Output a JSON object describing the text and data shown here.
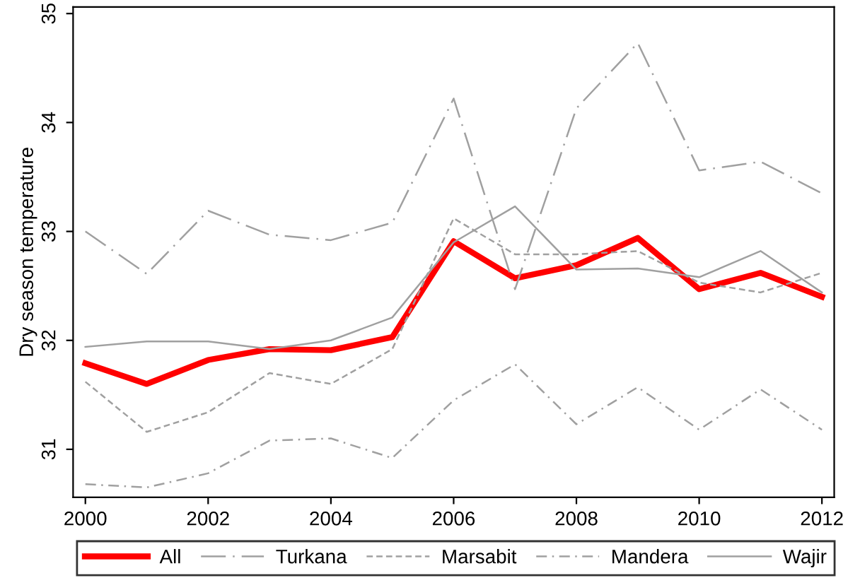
{
  "chart_data": {
    "type": "line",
    "ylabel": "Dry season temperature",
    "x": [
      2000,
      2001,
      2002,
      2003,
      2004,
      2005,
      2006,
      2007,
      2008,
      2009,
      2010,
      2011,
      2012
    ],
    "xlim": [
      1999.8,
      2012.2
    ],
    "xticks": [
      2000,
      2002,
      2004,
      2006,
      2008,
      2010,
      2012
    ],
    "ylim": [
      30.56,
      35.06
    ],
    "yticks": [
      31,
      32,
      33,
      34,
      35
    ],
    "grid": false,
    "legend": "bottom",
    "marker": "none",
    "series": [
      {
        "name": "All",
        "color": "#ff0000",
        "line_style": "solid",
        "values": [
          31.79,
          31.6,
          31.82,
          31.92,
          31.91,
          32.03,
          32.91,
          32.57,
          32.69,
          32.94,
          32.47,
          32.62,
          32.4
        ]
      },
      {
        "name": "Turkana",
        "color": "#a0a0a0",
        "line_style": "longdashdot",
        "values": [
          33.0,
          32.61,
          33.19,
          32.97,
          32.92,
          33.08,
          34.22,
          32.47,
          34.13,
          34.73,
          33.56,
          33.64,
          33.35
        ]
      },
      {
        "name": "Marsabit",
        "color": "#a0a0a0",
        "line_style": "dashed",
        "values": [
          31.62,
          31.16,
          31.34,
          31.7,
          31.6,
          31.92,
          33.12,
          32.79,
          32.79,
          32.82,
          32.53,
          32.44,
          32.62
        ]
      },
      {
        "name": "Mandera",
        "color": "#a0a0a0",
        "line_style": "dashdot",
        "values": [
          30.68,
          30.65,
          30.78,
          31.08,
          31.1,
          30.92,
          31.45,
          31.78,
          31.23,
          31.57,
          31.18,
          31.55,
          31.18
        ]
      },
      {
        "name": "Wajir",
        "color": "#a0a0a0",
        "line_style": "solid",
        "values": [
          31.94,
          31.99,
          31.99,
          31.92,
          32.0,
          32.21,
          32.9,
          33.23,
          32.65,
          32.66,
          32.58,
          32.82,
          32.44
        ]
      }
    ]
  }
}
